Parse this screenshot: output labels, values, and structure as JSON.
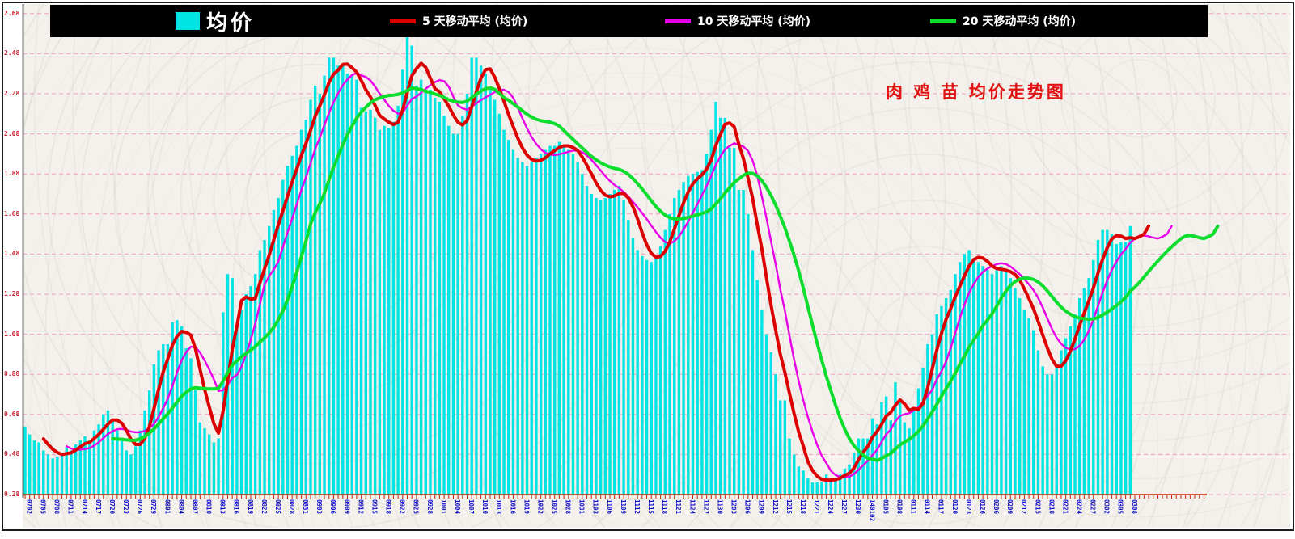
{
  "title": "肉 鸡 苗 均价走势图",
  "legend": {
    "bar_label": "均价",
    "ma5_label": "5 天移动平均 (均价)",
    "ma10_label": "10 天移动平均 (均价)",
    "ma20_label": "20 天移动平均 (均价)"
  },
  "colors": {
    "bar": "#00e4e4",
    "ma5": "#dd0000",
    "ma10": "#e800e8",
    "ma20": "#0ddd2d",
    "grid": "#f0a0c2",
    "axis": "#cc2200",
    "x_label": "#1818cc",
    "y_label": "#cc2233",
    "legend_bg": "#000000",
    "title": "#e01212"
  },
  "chart_data": {
    "type": "bar",
    "title": "肉 鸡 苗 均价走势图",
    "ylabel": "",
    "xlabel": "",
    "ylim": [
      0.28,
      2.68
    ],
    "grid": "horizontal-dashed",
    "legend_position": "top",
    "y_ticks": [
      "2.68",
      "2.48",
      "2.28",
      "2.08",
      "1.88",
      "1.68",
      "1.48",
      "1.28",
      "1.08",
      "0.88",
      "0.68",
      "0.48",
      "0.28"
    ],
    "x_label_every": 3,
    "x_labels": [
      "0702",
      "0705",
      "0708",
      "0711",
      "0714",
      "0717",
      "0720",
      "0723",
      "0726",
      "0729",
      "0801",
      "0804",
      "0807",
      "0810",
      "0813",
      "0816",
      "0819",
      "0822",
      "0825",
      "0828",
      "0831",
      "0903",
      "0906",
      "0909",
      "0912",
      "0915",
      "0918",
      "0922",
      "0925",
      "0928",
      "1001",
      "1004",
      "1007",
      "1010",
      "1013",
      "1016",
      "1019",
      "1022",
      "1025",
      "1028",
      "1031",
      "1103",
      "1106",
      "1109",
      "1112",
      "1115",
      "1118",
      "1121",
      "1124",
      "1127",
      "1130",
      "1203",
      "1206",
      "1209",
      "1212",
      "1215",
      "1218",
      "1221",
      "1224",
      "1227",
      "1230",
      "140102",
      "0105",
      "0108",
      "0111",
      "0114",
      "0117",
      "0120",
      "0123",
      "0126",
      "0206",
      "0209",
      "0212",
      "0215",
      "0218",
      "0221",
      "0224",
      "0227",
      "0302",
      "0305",
      "0308"
    ],
    "values": [
      0.62,
      0.58,
      0.55,
      0.54,
      0.5,
      0.48,
      0.46,
      0.47,
      0.49,
      0.52,
      0.5,
      0.53,
      0.55,
      0.57,
      0.55,
      0.6,
      0.63,
      0.68,
      0.7,
      0.65,
      0.6,
      0.55,
      0.5,
      0.48,
      0.52,
      0.6,
      0.7,
      0.8,
      0.93,
      1.0,
      1.03,
      1.03,
      1.14,
      1.15,
      1.12,
      1.01,
      0.96,
      0.8,
      0.64,
      0.61,
      0.58,
      0.54,
      0.56,
      1.19,
      1.38,
      1.36,
      1.11,
      1.2,
      1.28,
      1.32,
      1.38,
      1.5,
      1.55,
      1.62,
      1.7,
      1.76,
      1.85,
      1.92,
      1.97,
      2.02,
      2.1,
      2.15,
      2.25,
      2.32,
      2.28,
      2.37,
      2.46,
      2.46,
      2.42,
      2.42,
      2.38,
      2.37,
      2.35,
      2.21,
      2.19,
      2.2,
      2.16,
      2.1,
      2.12,
      2.11,
      2.14,
      2.22,
      2.4,
      2.57,
      2.52,
      2.32,
      2.35,
      2.3,
      2.3,
      2.26,
      2.24,
      2.17,
      2.12,
      2.08,
      2.08,
      2.17,
      2.28,
      2.46,
      2.46,
      2.42,
      2.38,
      2.3,
      2.25,
      2.18,
      2.1,
      2.05,
      2.0,
      1.96,
      1.94,
      1.92,
      1.94,
      1.96,
      1.98,
      2.0,
      2.02,
      2.02,
      2.04,
      2.02,
      2.0,
      1.98,
      1.94,
      1.88,
      1.82,
      1.78,
      1.76,
      1.75,
      1.76,
      1.78,
      1.8,
      1.82,
      1.75,
      1.65,
      1.56,
      1.5,
      1.47,
      1.45,
      1.44,
      1.46,
      1.52,
      1.6,
      1.68,
      1.76,
      1.8,
      1.84,
      1.87,
      1.88,
      1.89,
      1.9,
      1.98,
      2.1,
      2.24,
      2.16,
      2.16,
      2.01,
      2.01,
      1.8,
      1.8,
      1.68,
      1.5,
      1.35,
      1.2,
      1.08,
      0.99,
      0.88,
      0.75,
      0.75,
      0.56,
      0.48,
      0.42,
      0.4,
      0.36,
      0.34,
      0.34,
      0.34,
      0.38,
      0.36,
      0.35,
      0.38,
      0.41,
      0.43,
      0.49,
      0.56,
      0.56,
      0.56,
      0.66,
      0.63,
      0.74,
      0.77,
      0.65,
      0.84,
      0.76,
      0.64,
      0.61,
      0.7,
      0.81,
      0.91,
      1.03,
      1.08,
      1.18,
      1.22,
      1.26,
      1.3,
      1.38,
      1.44,
      1.48,
      1.5,
      1.46,
      1.44,
      1.42,
      1.4,
      1.38,
      1.4,
      1.42,
      1.4,
      1.36,
      1.31,
      1.26,
      1.2,
      1.16,
      1.1,
      1.0,
      0.92,
      0.88,
      0.88,
      0.92,
      1.0,
      1.06,
      1.12,
      1.18,
      1.26,
      1.31,
      1.36,
      1.45,
      1.55,
      1.6,
      1.6,
      1.58,
      1.53,
      1.54,
      1.54,
      1.62
    ],
    "series": [
      {
        "name": "5 天移动平均 (均价)",
        "type": "moving_average",
        "window": 5,
        "color": "#dd0000",
        "width": 4
      },
      {
        "name": "10 天移动平均 (均价)",
        "type": "moving_average",
        "window": 10,
        "color": "#e800e8",
        "width": 2.4
      },
      {
        "name": "20 天移动平均 (均价)",
        "type": "moving_average",
        "window": 20,
        "color": "#0ddd2d",
        "width": 4
      }
    ]
  }
}
